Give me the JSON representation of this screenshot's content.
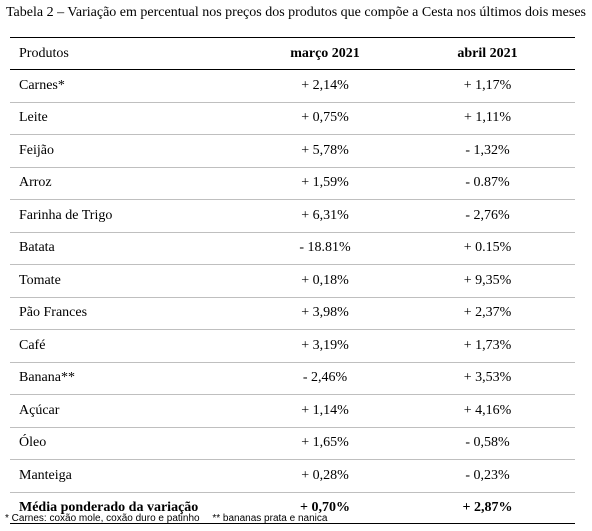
{
  "table": {
    "caption": "Tabela 2 – Variação em percentual nos preços dos produtos que compõe a Cesta nos últimos dois meses",
    "headers": [
      "Produtos",
      "março 2021",
      "abril 2021"
    ],
    "rows": [
      {
        "produto": "Carnes*",
        "marco": "+ 2,14%",
        "abril": "+ 1,17%"
      },
      {
        "produto": "Leite",
        "marco": "+ 0,75%",
        "abril": "+ 1,11%"
      },
      {
        "produto": "Feijão",
        "marco": "+ 5,78%",
        "abril": "- 1,32%"
      },
      {
        "produto": "Arroz",
        "marco": "+ 1,59%",
        "abril": "- 0.87%"
      },
      {
        "produto": "Farinha de Trigo",
        "marco": "+ 6,31%",
        "abril": "- 2,76%"
      },
      {
        "produto": "Batata",
        "marco": "- 18.81%",
        "abril": "+ 0.15%"
      },
      {
        "produto": "Tomate",
        "marco": "+ 0,18%",
        "abril": "+ 9,35%"
      },
      {
        "produto": "Pão Frances",
        "marco": "+ 3,98%",
        "abril": "+ 2,37%"
      },
      {
        "produto": "Café",
        "marco": "+ 3,19%",
        "abril": "+ 1,73%"
      },
      {
        "produto": "Banana**",
        "marco": "- 2,46%",
        "abril": "+ 3,53%"
      },
      {
        "produto": "Açúcar",
        "marco": "+ 1,14%",
        "abril": "+ 4,16%"
      },
      {
        "produto": "Óleo",
        "marco": "+ 1,65%",
        "abril": "- 0,58%"
      },
      {
        "produto": "Manteiga",
        "marco": "+ 0,28%",
        "abril": "- 0,23%"
      }
    ],
    "summary": {
      "produto": "Média ponderado da variação",
      "marco": "+ 0,70%",
      "abril": "+ 2,87%"
    }
  },
  "footnotes": {
    "carnes": "* Carnes: coxão mole, coxão duro e patinho",
    "bananas": "** bananas prata e nanica"
  }
}
